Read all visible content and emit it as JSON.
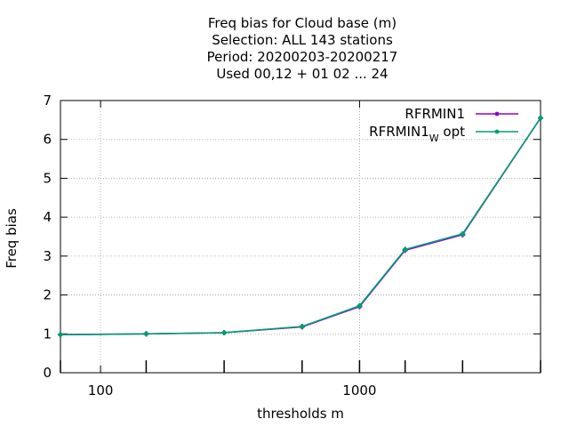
{
  "titles": [
    "Freq bias  for Cloud base (m)",
    "Selection: ALL    143 stations",
    "Period: 20200203-20200217",
    "Used  00,12  + 01 02 ... 24"
  ],
  "chart_data": {
    "type": "line",
    "xlabel": "thresholds m",
    "ylabel": "Freq bias",
    "x_scale": "log",
    "xlim": [
      70,
      5000
    ],
    "ylim": [
      0,
      7
    ],
    "grid": true,
    "legend_position": "top-right",
    "x_ticks": [
      {
        "value": 100,
        "label": "100"
      },
      {
        "value": 1000,
        "label": "1000"
      }
    ],
    "y_ticks": [
      0,
      1,
      2,
      3,
      4,
      5,
      6,
      7
    ],
    "series": [
      {
        "name": "RFRMIN1",
        "color": "#9400d3",
        "x": [
          70,
          150,
          300,
          600,
          1000,
          1500,
          2500,
          5000
        ],
        "y": [
          0.98,
          1.0,
          1.03,
          1.18,
          1.7,
          3.15,
          3.55,
          6.55
        ]
      },
      {
        "name": "RFRMIN1",
        "name_subscript": "W",
        "name_suffix": "opt",
        "color": "#009e73",
        "x": [
          70,
          150,
          300,
          600,
          1000,
          1500,
          2500,
          5000
        ],
        "y": [
          0.98,
          1.0,
          1.03,
          1.19,
          1.72,
          3.17,
          3.57,
          6.55
        ]
      }
    ]
  }
}
